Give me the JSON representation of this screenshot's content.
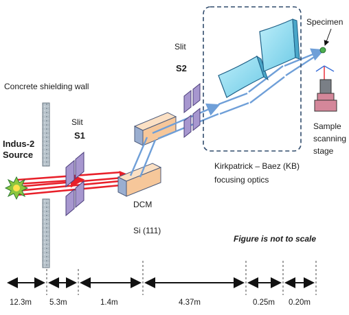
{
  "labels": {
    "wall": "Concrete shielding wall",
    "source_line1": "Indus-2",
    "source_line2": "Source",
    "slit1_line1": "Slit",
    "slit1_line2": "S1",
    "slit2_line1": "Slit",
    "slit2_line2": "S2",
    "dcm_line1": "DCM",
    "dcm_line2": "Si (111)",
    "kb_line1": "Kirkpatrick – Baez (KB)",
    "kb_line2": "focusing optics",
    "specimen": "Specimen",
    "stage_line1": "Sample",
    "stage_line2": "scanning",
    "stage_line3": "stage",
    "note": "Figure is not to scale"
  },
  "distances": [
    "12.3m",
    "5.3m",
    "1.4m",
    "4.37m",
    "0.25m",
    "0.20m"
  ],
  "colors": {
    "beam_red": "#e8202a",
    "beam_blue": "#6f9fd8",
    "slit_purple": "#8a7ab8",
    "dcm_orange": "#f6c79a",
    "kb_cyan": "#8fdcf0",
    "stage_pink": "#d4879a"
  }
}
